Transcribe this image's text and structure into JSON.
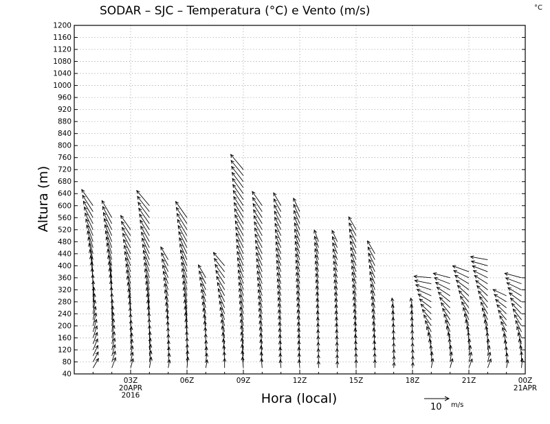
{
  "chart_data": {
    "type": "wind-barb-profile",
    "title": "SODAR – SJC – Temperatura (°C) e Vento (m/s)",
    "unit_label": "°C",
    "xlabel": "Hora (local)",
    "ylabel": "Altura (m)",
    "ylim": [
      40,
      1200
    ],
    "y_ticks": [
      40,
      80,
      120,
      160,
      200,
      240,
      280,
      320,
      360,
      400,
      440,
      480,
      520,
      560,
      600,
      640,
      680,
      720,
      760,
      800,
      840,
      880,
      920,
      960,
      1000,
      1040,
      1080,
      1120,
      1160,
      1200
    ],
    "xlim": [
      0,
      24
    ],
    "x_ticks": [
      {
        "hour": 3,
        "label": "03Z",
        "sub": [
          "20APR",
          "2016"
        ]
      },
      {
        "hour": 6,
        "label": "06Z",
        "sub": []
      },
      {
        "hour": 9,
        "label": "09Z",
        "sub": []
      },
      {
        "hour": 12,
        "label": "12Z",
        "sub": []
      },
      {
        "hour": 15,
        "label": "15Z",
        "sub": []
      },
      {
        "hour": 18,
        "label": "18Z",
        "sub": []
      },
      {
        "hour": 21,
        "label": "21Z",
        "sub": []
      },
      {
        "hour": 24,
        "label": "00Z",
        "sub": [
          "21APR"
        ]
      }
    ],
    "legend": {
      "value": "10",
      "unit": "m/s",
      "placement": "bottom-right"
    },
    "profiles": [
      {
        "hour": 1.0,
        "top": 600,
        "angle_low": 150,
        "angle_high": 215,
        "speed": 8
      },
      {
        "hour": 2.0,
        "top": 560,
        "angle_low": 160,
        "angle_high": 210,
        "speed": 8
      },
      {
        "hour": 3.0,
        "top": 520,
        "angle_low": 165,
        "angle_high": 215,
        "speed": 7
      },
      {
        "hour": 4.0,
        "top": 600,
        "angle_low": 170,
        "angle_high": 220,
        "speed": 8
      },
      {
        "hour": 5.0,
        "top": 420,
        "angle_low": 170,
        "angle_high": 210,
        "speed": 6
      },
      {
        "hour": 6.0,
        "top": 560,
        "angle_low": 175,
        "angle_high": 215,
        "speed": 8
      },
      {
        "hour": 7.0,
        "top": 360,
        "angle_low": 170,
        "angle_high": 210,
        "speed": 6
      },
      {
        "hour": 8.0,
        "top": 400,
        "angle_low": 180,
        "angle_high": 220,
        "speed": 7
      },
      {
        "hour": 9.0,
        "top": 720,
        "angle_low": 185,
        "angle_high": 220,
        "speed": 8
      },
      {
        "hour": 10.0,
        "top": 600,
        "angle_low": 185,
        "angle_high": 215,
        "speed": 7
      },
      {
        "hour": 11.0,
        "top": 600,
        "angle_low": 185,
        "angle_high": 210,
        "speed": 6
      },
      {
        "hour": 12.0,
        "top": 580,
        "angle_low": 185,
        "angle_high": 205,
        "speed": 6
      },
      {
        "hour": 13.0,
        "top": 480,
        "angle_low": 180,
        "angle_high": 200,
        "speed": 5
      },
      {
        "hour": 14.0,
        "top": 480,
        "angle_low": 180,
        "angle_high": 205,
        "speed": 5
      },
      {
        "hour": 15.0,
        "top": 520,
        "angle_low": 180,
        "angle_high": 210,
        "speed": 6
      },
      {
        "hour": 16.0,
        "top": 440,
        "angle_low": 180,
        "angle_high": 210,
        "speed": 6
      },
      {
        "hour": 17.0,
        "top": 260,
        "angle_low": 175,
        "angle_high": 190,
        "speed": 4
      },
      {
        "hour": 18.0,
        "top": 260,
        "angle_low": 175,
        "angle_high": 190,
        "speed": 4
      },
      {
        "hour": 19.0,
        "top": 360,
        "angle_low": 170,
        "angle_high": 265,
        "speed": 7
      },
      {
        "hour": 20.0,
        "top": 360,
        "angle_low": 165,
        "angle_high": 255,
        "speed": 7
      },
      {
        "hour": 21.0,
        "top": 380,
        "angle_low": 160,
        "angle_high": 250,
        "speed": 7
      },
      {
        "hour": 22.0,
        "top": 420,
        "angle_low": 160,
        "angle_high": 260,
        "speed": 7
      },
      {
        "hour": 23.0,
        "top": 300,
        "angle_low": 170,
        "angle_high": 245,
        "speed": 6
      },
      {
        "hour": 23.8,
        "top": 360,
        "angle_low": 175,
        "angle_high": 255,
        "speed": 7
      }
    ]
  }
}
